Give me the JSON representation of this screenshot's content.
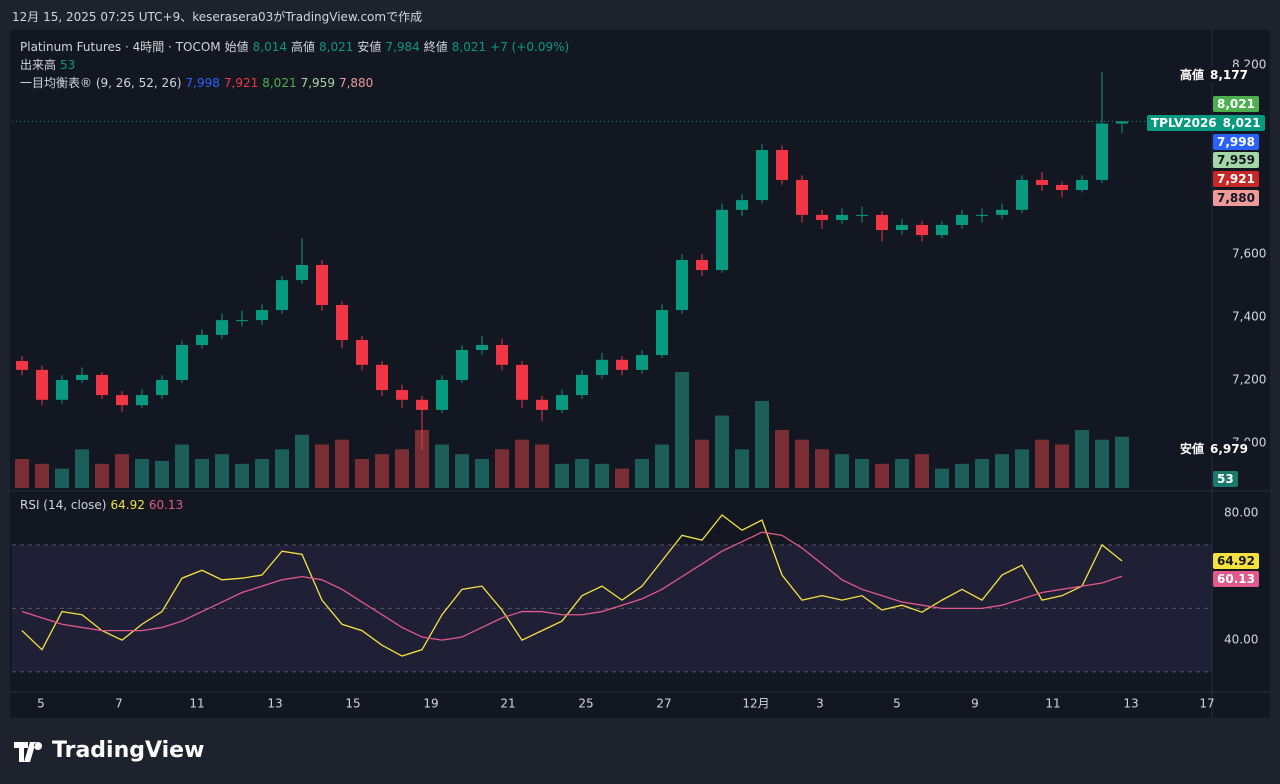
{
  "caption": "12月 15, 2025 07:25 UTC+9、keserasera03がTradingView.comで作成",
  "brand": "TradingView",
  "chart_data": {
    "type": "candlestick",
    "title": "Platinum Futures · 4時間 · TOCOM",
    "legend": [
      {
        "label": "始値",
        "value": "8,014"
      },
      {
        "label": "高値",
        "value": "8,021"
      },
      {
        "label": "安値",
        "value": "7,984"
      },
      {
        "label": "終値",
        "value": "8,021"
      }
    ],
    "change": "+7 (+0.09%)",
    "volume_label": "出来高",
    "volume_value": "53",
    "ichimoku_label": "一目均衡表® (9, 26, 52, 26)",
    "ichimoku_values": [
      {
        "label": "7,998",
        "color": "#2962ff"
      },
      {
        "label": "7,921",
        "color": "#f23645"
      },
      {
        "label": "8,021",
        "color": "#4caf50"
      },
      {
        "label": "7,959",
        "color": "#a5d6a7"
      },
      {
        "label": "7,880",
        "color": "#ef9a9a"
      }
    ],
    "open": [
      7260,
      7232,
      7137,
      7200,
      7216,
      7152,
      7120,
      7152,
      7200,
      7311,
      7343,
      7390,
      7390,
      7422,
      7517,
      7565,
      7438,
      7327,
      7248,
      7168,
      7137,
      7105,
      7200,
      7295,
      7311,
      7248,
      7137,
      7105,
      7152,
      7216,
      7264,
      7232,
      7279,
      7422,
      7581,
      7549,
      7740,
      7771,
      7930,
      7835,
      7724,
      7708,
      7724,
      7724,
      7676,
      7692,
      7660,
      7692,
      7724,
      7724,
      7740,
      7835,
      7819,
      7803,
      7835,
      8014
    ],
    "high": [
      7275,
      7245,
      7215,
      7240,
      7225,
      7165,
      7170,
      7215,
      7325,
      7360,
      7410,
      7420,
      7440,
      7530,
      7650,
      7580,
      7450,
      7340,
      7260,
      7185,
      7150,
      7215,
      7310,
      7340,
      7330,
      7260,
      7150,
      7170,
      7230,
      7285,
      7275,
      7295,
      7440,
      7600,
      7600,
      7760,
      7790,
      7950,
      7945,
      7850,
      7740,
      7745,
      7750,
      7735,
      7710,
      7705,
      7705,
      7740,
      7745,
      7760,
      7850,
      7860,
      7830,
      7850,
      8177,
      8021
    ],
    "low": [
      7215,
      7120,
      7125,
      7190,
      7140,
      7100,
      7110,
      7140,
      7190,
      7300,
      7330,
      7370,
      7375,
      7410,
      7505,
      7420,
      7300,
      7230,
      7150,
      7110,
      6979,
      7095,
      7190,
      7280,
      7230,
      7110,
      7070,
      7095,
      7140,
      7205,
      7215,
      7220,
      7270,
      7410,
      7530,
      7540,
      7720,
      7760,
      7820,
      7700,
      7680,
      7695,
      7700,
      7640,
      7660,
      7640,
      7650,
      7680,
      7700,
      7710,
      7730,
      7800,
      7780,
      7795,
      7825,
      7984
    ],
    "close": [
      7232,
      7137,
      7200,
      7216,
      7152,
      7120,
      7152,
      7200,
      7311,
      7343,
      7390,
      7390,
      7422,
      7517,
      7565,
      7438,
      7327,
      7248,
      7168,
      7137,
      7105,
      7200,
      7295,
      7311,
      7248,
      7137,
      7105,
      7152,
      7216,
      7264,
      7232,
      7279,
      7422,
      7581,
      7549,
      7740,
      7771,
      7930,
      7835,
      7724,
      7708,
      7724,
      7724,
      7676,
      7692,
      7660,
      7692,
      7724,
      7724,
      7740,
      7835,
      7819,
      7803,
      7835,
      8014,
      8021
    ],
    "volume": [
      30,
      25,
      20,
      40,
      25,
      35,
      30,
      28,
      45,
      30,
      35,
      25,
      30,
      40,
      55,
      45,
      50,
      30,
      35,
      40,
      60,
      45,
      35,
      30,
      40,
      50,
      45,
      25,
      30,
      25,
      20,
      30,
      45,
      120,
      50,
      75,
      40,
      90,
      60,
      50,
      40,
      35,
      30,
      25,
      30,
      35,
      20,
      25,
      30,
      35,
      40,
      50,
      45,
      60,
      50,
      53
    ],
    "up_color": "#089981",
    "down_color": "#f23645",
    "volume_up_color": "#1b5e5a",
    "volume_down_color": "#7a2e34",
    "xlim": [
      -0.5,
      59.5
    ],
    "xticks": [
      {
        "value": 0.95,
        "label": "5"
      },
      {
        "value": 4.85,
        "label": "7"
      },
      {
        "value": 8.75,
        "label": "11"
      },
      {
        "value": 12.65,
        "label": "13"
      },
      {
        "value": 16.55,
        "label": "15"
      },
      {
        "value": 20.45,
        "label": "19"
      },
      {
        "value": 24.3,
        "label": "21"
      },
      {
        "value": 28.2,
        "label": "25"
      },
      {
        "value": 32.1,
        "label": "27"
      },
      {
        "value": 36.7,
        "label": "12月"
      },
      {
        "value": 39.9,
        "label": "3"
      },
      {
        "value": 43.75,
        "label": "5"
      },
      {
        "value": 47.65,
        "label": "9"
      },
      {
        "value": 51.55,
        "label": "11"
      },
      {
        "value": 55.45,
        "label": "13"
      },
      {
        "value": 59.25,
        "label": "17"
      }
    ],
    "ylim": [
      6857,
      8311
    ],
    "yticks": [
      {
        "value": 7000,
        "label": "7,000"
      },
      {
        "value": 7200,
        "label": "7,200"
      },
      {
        "value": 7400,
        "label": "7,400"
      },
      {
        "value": 7600,
        "label": "7,600"
      },
      {
        "value": 8200,
        "label": "8,200"
      }
    ],
    "price_tags": [
      {
        "label": "高値",
        "value": "8,177",
        "bg": "#131722",
        "fg": "#ffffff"
      },
      {
        "value": "8,021",
        "bg": "#4caf50",
        "fg": "#ffffff"
      },
      {
        "label": "TPLV2026",
        "value": "8,021",
        "bg": "#089981",
        "fg": "#ffffff"
      },
      {
        "value": "7,998",
        "bg": "#2962ff",
        "fg": "#ffffff"
      },
      {
        "value": "7,959",
        "bg": "#a5d6a7",
        "fg": "#131722"
      },
      {
        "value": "7,921",
        "bg": "#c62828",
        "fg": "#ffffff"
      },
      {
        "value": "7,880",
        "bg": "#ef9a9a",
        "fg": "#131722"
      },
      {
        "label": "安値",
        "value": "6,979",
        "bg": "#131722",
        "fg": "#ffffff"
      },
      {
        "value": "53",
        "bg": "#1b7a6e",
        "fg": "#ffffff"
      }
    ],
    "rsi": {
      "type": "line",
      "label": "RSI (14, close)",
      "legend_values": [
        {
          "label": "64.92",
          "color": "#f7e13e"
        },
        {
          "label": "60.13",
          "color": "#e2598b"
        }
      ],
      "series": [
        {
          "color": "#f7e13e",
          "values": [
            43,
            37,
            49,
            48,
            43,
            40,
            45,
            49,
            59.5,
            62,
            59,
            59.5,
            60.5,
            68,
            67,
            52.6,
            45,
            43,
            38.4,
            35,
            37,
            48,
            56,
            57,
            49.5,
            40,
            43,
            46,
            54,
            57,
            52.6,
            57,
            65,
            73,
            71.5,
            79.4,
            74.6,
            77.8,
            60.5,
            52.6,
            54,
            52.6,
            54,
            49.5,
            51,
            48.8,
            52.6,
            56,
            52.6,
            60.5,
            63.6,
            52.6,
            54,
            57,
            70,
            64.92
          ]
        },
        {
          "color": "#e2598b",
          "values": [
            49,
            47,
            45,
            44,
            43,
            43,
            43,
            44,
            46,
            49,
            52,
            55,
            57,
            59,
            60,
            59,
            56,
            52,
            48,
            44,
            41,
            40,
            41,
            44,
            47,
            49,
            49,
            48,
            48,
            49,
            51,
            53,
            56,
            60,
            64,
            68,
            71,
            74,
            73,
            69,
            64,
            59,
            56,
            54,
            52,
            51,
            50,
            50,
            50,
            51,
            53,
            55,
            56,
            57,
            58,
            60.13
          ]
        }
      ],
      "ylim": [
        24.3,
        85.7
      ],
      "yticks": [
        {
          "value": 80,
          "label": "80.00"
        },
        {
          "value": 40,
          "label": "40.00"
        }
      ],
      "bands": [
        70,
        50,
        30
      ],
      "tags": [
        {
          "value": "64.92",
          "bg": "#f7e13e",
          "fg": "#131722"
        },
        {
          "value": "60.13",
          "bg": "#e2598b",
          "fg": "#ffffff"
        }
      ]
    }
  }
}
